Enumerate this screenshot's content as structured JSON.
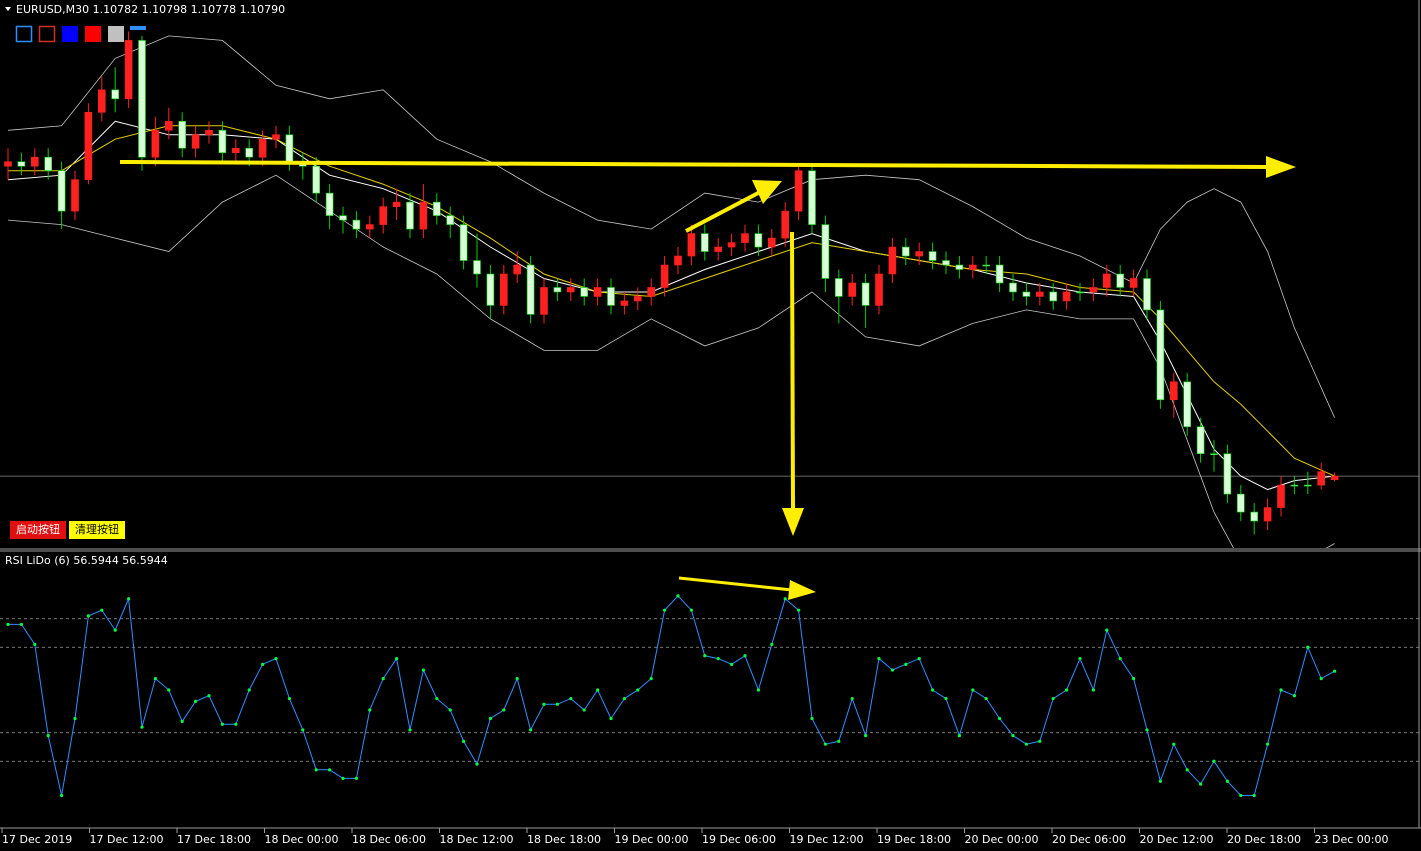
{
  "chart_data": [
    {
      "type": "candlestick",
      "title": "EURUSD,M30  1.10782 1.10798 1.10778 1.10790",
      "ylim": [
        1.1063,
        1.1185
      ],
      "up_color": "#ff2020",
      "down_color": "#d8ffd8",
      "down_edge": "#00d000",
      "open": [
        1.1148,
        1.1149,
        1.1148,
        1.115,
        1.1147,
        1.1138,
        1.1145,
        1.116,
        1.1165,
        1.1163,
        1.1176,
        1.115,
        1.1156,
        1.1158,
        1.1152,
        1.1155,
        1.1156,
        1.1151,
        1.1152,
        1.115,
        1.1154,
        1.1155,
        1.1149,
        1.1148,
        1.1142,
        1.1137,
        1.1136,
        1.1134,
        1.1135,
        1.1139,
        1.114,
        1.1134,
        1.114,
        1.1137,
        1.1135,
        1.1127,
        1.1124,
        1.1117,
        1.1124,
        1.1126,
        1.1115,
        1.1121,
        1.112,
        1.1121,
        1.1119,
        1.1121,
        1.1117,
        1.1118,
        1.1119,
        1.1121,
        1.1126,
        1.1128,
        1.1133,
        1.1129,
        1.113,
        1.1131,
        1.1133,
        1.113,
        1.1132,
        1.1138,
        1.1147,
        1.1135,
        1.1123,
        1.1119,
        1.1122,
        1.1117,
        1.1124,
        1.113,
        1.1128,
        1.1129,
        1.1127,
        1.1126,
        1.1125,
        1.1126,
        1.1126,
        1.1122,
        1.112,
        1.1119,
        1.112,
        1.1118,
        1.112,
        1.112,
        1.1121,
        1.1124,
        1.1121,
        1.1123,
        1.1116,
        1.1096,
        1.11,
        1.109,
        1.1084,
        1.1084,
        1.1075,
        1.1071,
        1.1069,
        1.1072,
        1.1077,
        1.1077,
        1.1077,
        1.10782
      ],
      "high": [
        1.1152,
        1.1151,
        1.1152,
        1.1152,
        1.1149,
        1.1147,
        1.1162,
        1.1168,
        1.117,
        1.1178,
        1.1177,
        1.1159,
        1.1161,
        1.116,
        1.1157,
        1.1158,
        1.1158,
        1.1154,
        1.1154,
        1.1156,
        1.1157,
        1.1157,
        1.1151,
        1.115,
        1.1144,
        1.1139,
        1.1138,
        1.1137,
        1.1141,
        1.1143,
        1.1142,
        1.1144,
        1.1142,
        1.1139,
        1.1137,
        1.1133,
        1.1126,
        1.1126,
        1.1129,
        1.1128,
        1.1123,
        1.1123,
        1.1123,
        1.1123,
        1.1123,
        1.1123,
        1.112,
        1.1121,
        1.1123,
        1.1128,
        1.113,
        1.1135,
        1.1135,
        1.1132,
        1.1133,
        1.1135,
        1.1135,
        1.1134,
        1.114,
        1.1148,
        1.1148,
        1.1137,
        1.1125,
        1.1124,
        1.1124,
        1.1126,
        1.1132,
        1.1132,
        1.1131,
        1.1131,
        1.1129,
        1.1128,
        1.1128,
        1.1128,
        1.1128,
        1.1124,
        1.1122,
        1.1122,
        1.1122,
        1.1122,
        1.1122,
        1.1123,
        1.1126,
        1.1126,
        1.1125,
        1.1125,
        1.1118,
        1.1102,
        1.1102,
        1.1092,
        1.1087,
        1.1086,
        1.1077,
        1.1073,
        1.1074,
        1.1079,
        1.1079,
        1.108,
        1.1082,
        1.10798
      ],
      "low": [
        1.1145,
        1.1146,
        1.1146,
        1.1145,
        1.1134,
        1.1136,
        1.1144,
        1.1158,
        1.116,
        1.1161,
        1.1147,
        1.1148,
        1.1154,
        1.115,
        1.115,
        1.1153,
        1.1149,
        1.1149,
        1.1148,
        1.1148,
        1.1152,
        1.1147,
        1.1145,
        1.114,
        1.1134,
        1.1133,
        1.1132,
        1.1132,
        1.1133,
        1.1136,
        1.1132,
        1.1132,
        1.1135,
        1.1132,
        1.1125,
        1.1121,
        1.1114,
        1.1115,
        1.1122,
        1.1113,
        1.1113,
        1.1118,
        1.1118,
        1.1117,
        1.1117,
        1.1115,
        1.1115,
        1.1116,
        1.1117,
        1.1119,
        1.1124,
        1.1126,
        1.1127,
        1.1127,
        1.1128,
        1.1129,
        1.1128,
        1.1128,
        1.113,
        1.1136,
        1.1133,
        1.112,
        1.1113,
        1.1117,
        1.1112,
        1.1115,
        1.1122,
        1.1126,
        1.1126,
        1.1125,
        1.1124,
        1.1123,
        1.1123,
        1.1124,
        1.112,
        1.1118,
        1.1117,
        1.1117,
        1.1116,
        1.1116,
        1.1118,
        1.1118,
        1.1119,
        1.1119,
        1.1119,
        1.1114,
        1.1094,
        1.1092,
        1.1088,
        1.1082,
        1.108,
        1.1073,
        1.1069,
        1.1066,
        1.1067,
        1.107,
        1.1075,
        1.1075,
        1.1076,
        1.10778
      ],
      "close": [
        1.1149,
        1.1148,
        1.115,
        1.1147,
        1.1138,
        1.1145,
        1.116,
        1.1165,
        1.1163,
        1.1176,
        1.115,
        1.1156,
        1.1158,
        1.1152,
        1.1155,
        1.1156,
        1.1151,
        1.1152,
        1.115,
        1.1154,
        1.1155,
        1.1149,
        1.1148,
        1.1142,
        1.1137,
        1.1136,
        1.1134,
        1.1135,
        1.1139,
        1.114,
        1.1134,
        1.114,
        1.1137,
        1.1135,
        1.1127,
        1.1124,
        1.1117,
        1.1124,
        1.1126,
        1.1115,
        1.1121,
        1.112,
        1.1121,
        1.1119,
        1.1121,
        1.1117,
        1.1118,
        1.1119,
        1.1121,
        1.1126,
        1.1128,
        1.1133,
        1.1129,
        1.113,
        1.1131,
        1.1133,
        1.113,
        1.1132,
        1.1138,
        1.1147,
        1.1135,
        1.1123,
        1.1119,
        1.1122,
        1.1117,
        1.1124,
        1.113,
        1.1128,
        1.1129,
        1.1127,
        1.1126,
        1.1125,
        1.1126,
        1.1126,
        1.1122,
        1.112,
        1.1119,
        1.112,
        1.1118,
        1.112,
        1.112,
        1.1121,
        1.1124,
        1.1121,
        1.1123,
        1.1116,
        1.1096,
        1.11,
        1.109,
        1.1084,
        1.1084,
        1.1075,
        1.1071,
        1.1069,
        1.1072,
        1.1077,
        1.1077,
        1.1077,
        1.108,
        1.1079
      ],
      "overlay_x": [
        0,
        4,
        8,
        12,
        16,
        20,
        24,
        28,
        32,
        36,
        40,
        44,
        48,
        52,
        56,
        60,
        64,
        68,
        72,
        76,
        80,
        84,
        86,
        88,
        90,
        92,
        94,
        96,
        99
      ],
      "overlays": [
        {
          "color": "#c8c8c8",
          "width": 0.8,
          "values": [
            1.1156,
            1.1157,
            1.1172,
            1.1177,
            1.1176,
            1.1166,
            1.1163,
            1.1165,
            1.1154,
            1.1149,
            1.1142,
            1.1136,
            1.1134,
            1.1142,
            1.114,
            1.1145,
            1.1146,
            1.1145,
            1.1139,
            1.1132,
            1.1128,
            1.1122,
            1.1134,
            1.114,
            1.1143,
            1.114,
            1.1129,
            1.1112,
            1.1092
          ]
        },
        {
          "color": "#c8c8c8",
          "width": 0.8,
          "values": [
            1.1136,
            1.1135,
            1.1132,
            1.1129,
            1.114,
            1.1146,
            1.1138,
            1.113,
            1.1124,
            1.1114,
            1.1107,
            1.1107,
            1.1114,
            1.1108,
            1.1112,
            1.112,
            1.111,
            1.1108,
            1.1113,
            1.1116,
            1.1114,
            1.1114,
            1.1103,
            1.1087,
            1.1071,
            1.106,
            1.1058,
            1.1059,
            1.1064
          ]
        },
        {
          "color": "#ffffff",
          "width": 1,
          "values": [
            1.1145,
            1.1146,
            1.1158,
            1.1155,
            1.1155,
            1.1154,
            1.1146,
            1.1143,
            1.1138,
            1.113,
            1.1123,
            1.112,
            1.112,
            1.1125,
            1.1129,
            1.1133,
            1.1129,
            1.1127,
            1.1125,
            1.1122,
            1.112,
            1.1119,
            1.1109,
            1.1097,
            1.1085,
            1.1079,
            1.1076,
            1.1078,
            1.1079
          ]
        },
        {
          "color": "#e6d000",
          "width": 1,
          "values": [
            1.1147,
            1.1147,
            1.1154,
            1.1157,
            1.1157,
            1.1154,
            1.1148,
            1.1144,
            1.1139,
            1.1132,
            1.1124,
            1.112,
            1.1119,
            1.1123,
            1.1127,
            1.1131,
            1.1129,
            1.1127,
            1.1125,
            1.1124,
            1.1121,
            1.112,
            1.1114,
            1.1107,
            1.11,
            1.1095,
            1.1089,
            1.1083,
            1.1079
          ]
        }
      ]
    },
    {
      "type": "line",
      "title": "RSI LiDo (6) 56.5944 56.5944",
      "color": "#2f8fff",
      "marker_color": "#00ff40",
      "ylim": [
        1.6,
        98.4
      ],
      "levels": [
        75,
        65,
        35,
        25
      ],
      "values": [
        73,
        73,
        66,
        34,
        13,
        40,
        76,
        78,
        71,
        82,
        37,
        54,
        50,
        39,
        46,
        48,
        38,
        38,
        50,
        59,
        61,
        47,
        36,
        22,
        22,
        19,
        19,
        43,
        54,
        61,
        36,
        57,
        47,
        43,
        32,
        24,
        40,
        43,
        54,
        36,
        45,
        45,
        47,
        43,
        50,
        40,
        47,
        50,
        54,
        78,
        83,
        78,
        62,
        61,
        59,
        62,
        50,
        66,
        82,
        78,
        40,
        31,
        32,
        47,
        34,
        61,
        57,
        59,
        61,
        50,
        47,
        34,
        50,
        47,
        40,
        34,
        31,
        32,
        47,
        50,
        61,
        50,
        71,
        61,
        54,
        36,
        18,
        31,
        22,
        17,
        25,
        18,
        13,
        13,
        31,
        50,
        48,
        65,
        54,
        56.5944
      ]
    }
  ],
  "time_labels": [
    "17 Dec 2019",
    "17 Dec 12:00",
    "17 Dec 18:00",
    "18 Dec 00:00",
    "18 Dec 06:00",
    "18 Dec 12:00",
    "18 Dec 18:00",
    "19 Dec 00:00",
    "19 Dec 06:00",
    "19 Dec 12:00",
    "19 Dec 18:00",
    "20 Dec 00:00",
    "20 Dec 06:00",
    "20 Dec 12:00",
    "20 Dec 18:00",
    "23 Dec 00:00"
  ],
  "buttons": [
    "启动按钮",
    "清理按钮"
  ]
}
